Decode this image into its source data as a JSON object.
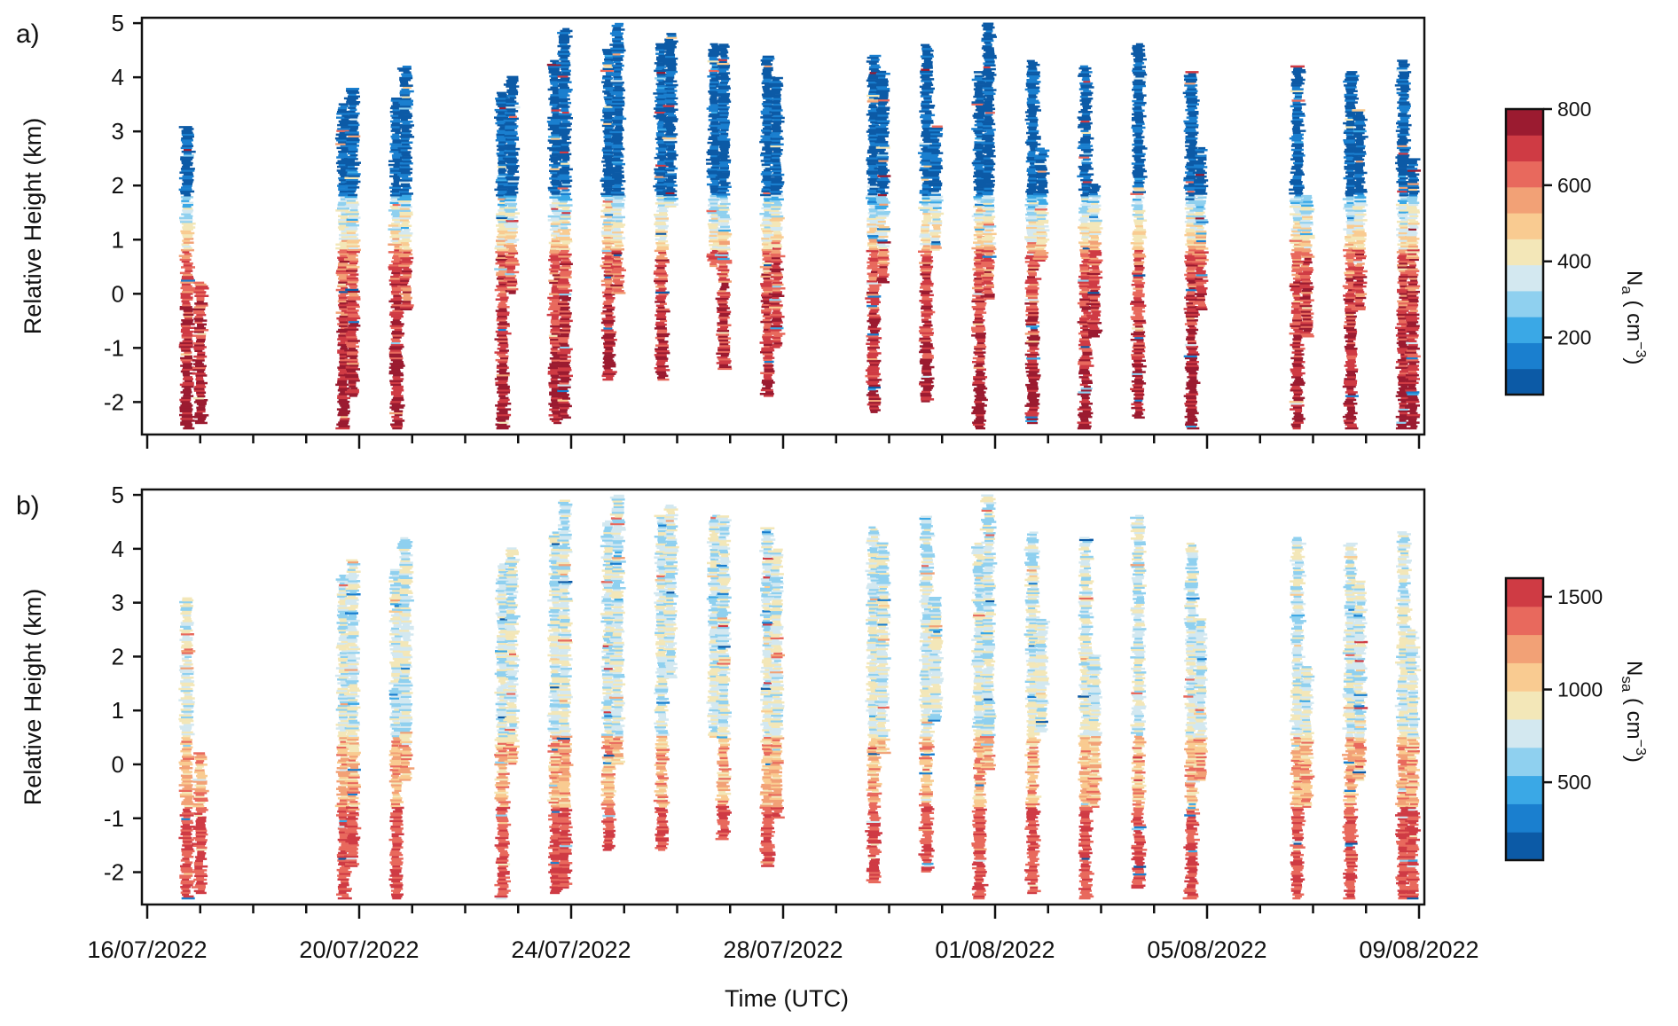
{
  "chart_data": [
    {
      "panel_label": "a)",
      "type": "scatter",
      "ylabel": "Relative Height (km)",
      "ylim": [
        -2.6,
        5.1
      ],
      "yticks": [
        5,
        4,
        3,
        2,
        1,
        0,
        -1,
        -2
      ],
      "ytick_labels": [
        "5",
        "4",
        "3",
        "2",
        "1",
        "0",
        "-1",
        "-2"
      ],
      "colorbar": {
        "label_main": "N",
        "label_sub": "a",
        "label_unit": " ( cm",
        "label_exp": "−3",
        "label_close": ")",
        "range": [
          50,
          800
        ],
        "ticks": [
          200,
          400,
          600,
          800
        ],
        "tick_labels": [
          "200",
          "400",
          "600",
          "800"
        ],
        "colors": [
          "#0c5aa6",
          "#1a7fcf",
          "#3aa8e6",
          "#8fd0ef",
          "#d3e8f0",
          "#f3e7b8",
          "#f9cb91",
          "#f2a176",
          "#e8695d",
          "#cf3b44",
          "#9b1b30"
        ]
      }
    },
    {
      "panel_label": "b)",
      "type": "scatter",
      "ylabel": "Relative Height (km)",
      "xlabel": "Time (UTC)",
      "ylim": [
        -2.6,
        5.1
      ],
      "yticks": [
        5,
        4,
        3,
        2,
        1,
        0,
        -1,
        -2
      ],
      "ytick_labels": [
        "5",
        "4",
        "3",
        "2",
        "1",
        "0",
        "-1",
        "-2"
      ],
      "colorbar": {
        "label_main": "N",
        "label_sub": "sa",
        "label_unit": " ( cm",
        "label_exp": "−3",
        "label_close": ")",
        "range": [
          80,
          1600
        ],
        "ticks": [
          500,
          1000,
          1500
        ],
        "tick_labels": [
          "500",
          "1000",
          "1500"
        ],
        "colors": [
          "#0c5aa6",
          "#1a7fcf",
          "#3aa8e6",
          "#8fd0ef",
          "#d3e8f0",
          "#f3e7b8",
          "#f9cb91",
          "#f2a176",
          "#e8695d",
          "#cf3b44"
        ]
      }
    }
  ],
  "xaxis": {
    "range": [
      "2022-07-16",
      "2022-08-09"
    ],
    "tick_labels": [
      "16/07/2022",
      "20/07/2022",
      "24/07/2022",
      "28/07/2022",
      "01/08/2022",
      "05/08/2022",
      "09/08/2022"
    ],
    "label_dates": [
      "2022-07-16",
      "2022-07-20",
      "2022-07-24",
      "2022-07-28",
      "2022-08-01",
      "2022-08-05",
      "2022-08-09"
    ]
  },
  "profiles": [
    {
      "date": "2022-07-16 18:00",
      "top": 3.1,
      "bottom": -2.5
    },
    {
      "date": "2022-07-17 00:00",
      "top": 0.2,
      "bottom": -2.4
    },
    {
      "date": "2022-07-19 17:00",
      "top": 3.5,
      "bottom": -2.5
    },
    {
      "date": "2022-07-19 21:00",
      "top": 3.8,
      "bottom": -1.9
    },
    {
      "date": "2022-07-20 17:00",
      "top": 3.6,
      "bottom": -2.5
    },
    {
      "date": "2022-07-20 21:00",
      "top": 4.2,
      "bottom": -0.3
    },
    {
      "date": "2022-07-22 17:00",
      "top": 3.7,
      "bottom": -2.5
    },
    {
      "date": "2022-07-22 21:00",
      "top": 4.0,
      "bottom": 0.0
    },
    {
      "date": "2022-07-23 17:00",
      "top": 4.3,
      "bottom": -2.4
    },
    {
      "date": "2022-07-23 21:00",
      "top": 4.9,
      "bottom": -2.3
    },
    {
      "date": "2022-07-24 17:00",
      "top": 4.5,
      "bottom": -1.6
    },
    {
      "date": "2022-07-24 21:00",
      "top": 5.0,
      "bottom": 0.0
    },
    {
      "date": "2022-07-25 17:00",
      "top": 4.6,
      "bottom": -1.6
    },
    {
      "date": "2022-07-25 21:00",
      "top": 4.8,
      "bottom": 1.6
    },
    {
      "date": "2022-07-26 17:00",
      "top": 4.6,
      "bottom": 0.5
    },
    {
      "date": "2022-07-26 21:00",
      "top": 4.6,
      "bottom": -1.4
    },
    {
      "date": "2022-07-27 17:00",
      "top": 4.4,
      "bottom": -1.9
    },
    {
      "date": "2022-07-27 21:00",
      "top": 4.0,
      "bottom": -1.0
    },
    {
      "date": "2022-07-29 17:00",
      "top": 4.4,
      "bottom": -2.2
    },
    {
      "date": "2022-07-29 21:00",
      "top": 4.1,
      "bottom": 0.2
    },
    {
      "date": "2022-07-30 17:00",
      "top": 4.6,
      "bottom": -2.0
    },
    {
      "date": "2022-07-30 21:00",
      "top": 3.1,
      "bottom": 0.8
    },
    {
      "date": "2022-07-31 17:00",
      "top": 4.1,
      "bottom": -2.5
    },
    {
      "date": "2022-07-31 21:00",
      "top": 5.0,
      "bottom": -0.1
    },
    {
      "date": "2022-08-01 17:00",
      "top": 4.3,
      "bottom": -2.4
    },
    {
      "date": "2022-08-01 21:00",
      "top": 2.7,
      "bottom": 0.6
    },
    {
      "date": "2022-08-02 17:00",
      "top": 4.2,
      "bottom": -2.5
    },
    {
      "date": "2022-08-02 21:00",
      "top": 2.0,
      "bottom": -0.8
    },
    {
      "date": "2022-08-03 17:00",
      "top": 4.6,
      "bottom": -2.3
    },
    {
      "date": "2022-08-04 17:00",
      "top": 4.1,
      "bottom": -2.5
    },
    {
      "date": "2022-08-04 21:00",
      "top": 2.7,
      "bottom": -0.3
    },
    {
      "date": "2022-08-06 17:00",
      "top": 4.2,
      "bottom": -2.5
    },
    {
      "date": "2022-08-06 21:00",
      "top": 1.8,
      "bottom": -0.8
    },
    {
      "date": "2022-08-07 17:00",
      "top": 4.1,
      "bottom": -2.5
    },
    {
      "date": "2022-08-07 21:00",
      "top": 3.4,
      "bottom": -0.3
    },
    {
      "date": "2022-08-08 17:00",
      "top": 4.3,
      "bottom": -2.5
    },
    {
      "date": "2022-08-08 21:00",
      "top": 2.5,
      "bottom": -2.5
    }
  ]
}
